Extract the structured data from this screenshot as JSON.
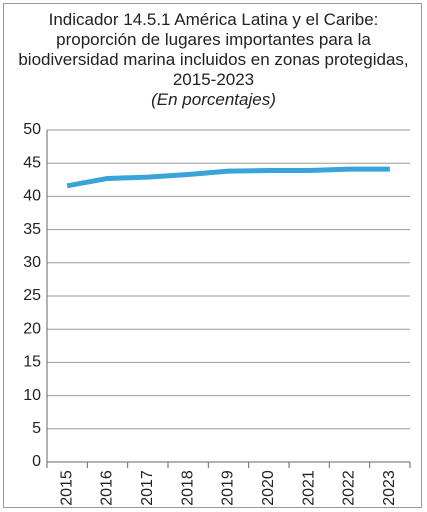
{
  "chart_data": {
    "type": "line",
    "title": "Indicador 14.5.1 América Latina y el Caribe: proporción de lugares importantes para la biodiversidad marina incluidos en zonas protegidas, 2015-2023",
    "subtitle": "(En porcentajes)",
    "categories": [
      "2015",
      "2016",
      "2017",
      "2018",
      "2019",
      "2020",
      "2021",
      "2022",
      "2023"
    ],
    "values": [
      41.6,
      42.7,
      42.9,
      43.3,
      43.8,
      43.9,
      43.9,
      44.1,
      44.1
    ],
    "color": "#3aa3d9",
    "ylim": [
      0,
      50
    ],
    "yticks": [
      0,
      5,
      10,
      15,
      20,
      25,
      30,
      35,
      40,
      45,
      50
    ],
    "grid": true
  }
}
